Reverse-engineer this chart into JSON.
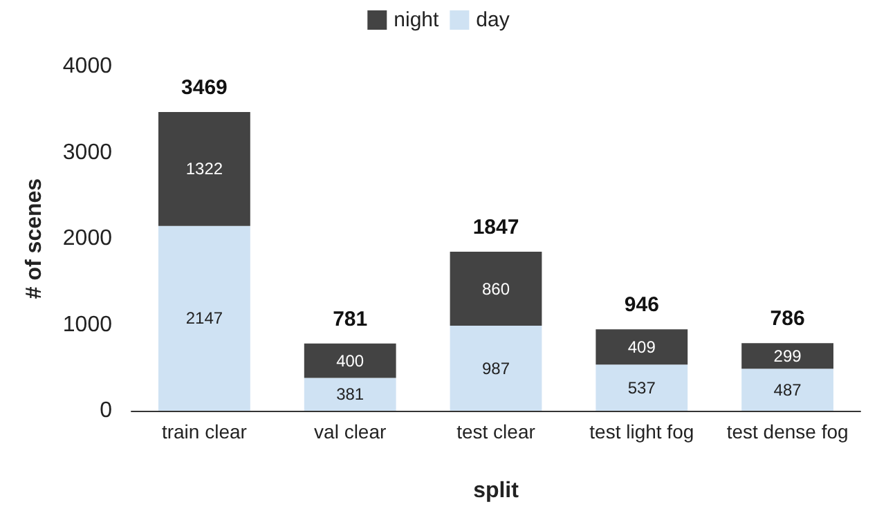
{
  "chart_data": {
    "type": "bar",
    "stacked": true,
    "xlabel": "split",
    "ylabel": "# of scenes",
    "categories": [
      "train clear",
      "val clear",
      "test clear",
      "test light fog",
      "test dense fog"
    ],
    "series": [
      {
        "name": "day",
        "color": "#cfe2f3",
        "values": [
          2147,
          381,
          987,
          537,
          487
        ]
      },
      {
        "name": "night",
        "color": "#434343",
        "values": [
          1322,
          400,
          860,
          409,
          299
        ]
      }
    ],
    "totals": [
      "3469",
      "781",
      "1847",
      "946",
      "786"
    ],
    "ylim": [
      0,
      4000
    ],
    "yticks": [
      0,
      1000,
      2000,
      3000,
      4000
    ],
    "grid": false,
    "legend": "top",
    "data_labels": true
  }
}
